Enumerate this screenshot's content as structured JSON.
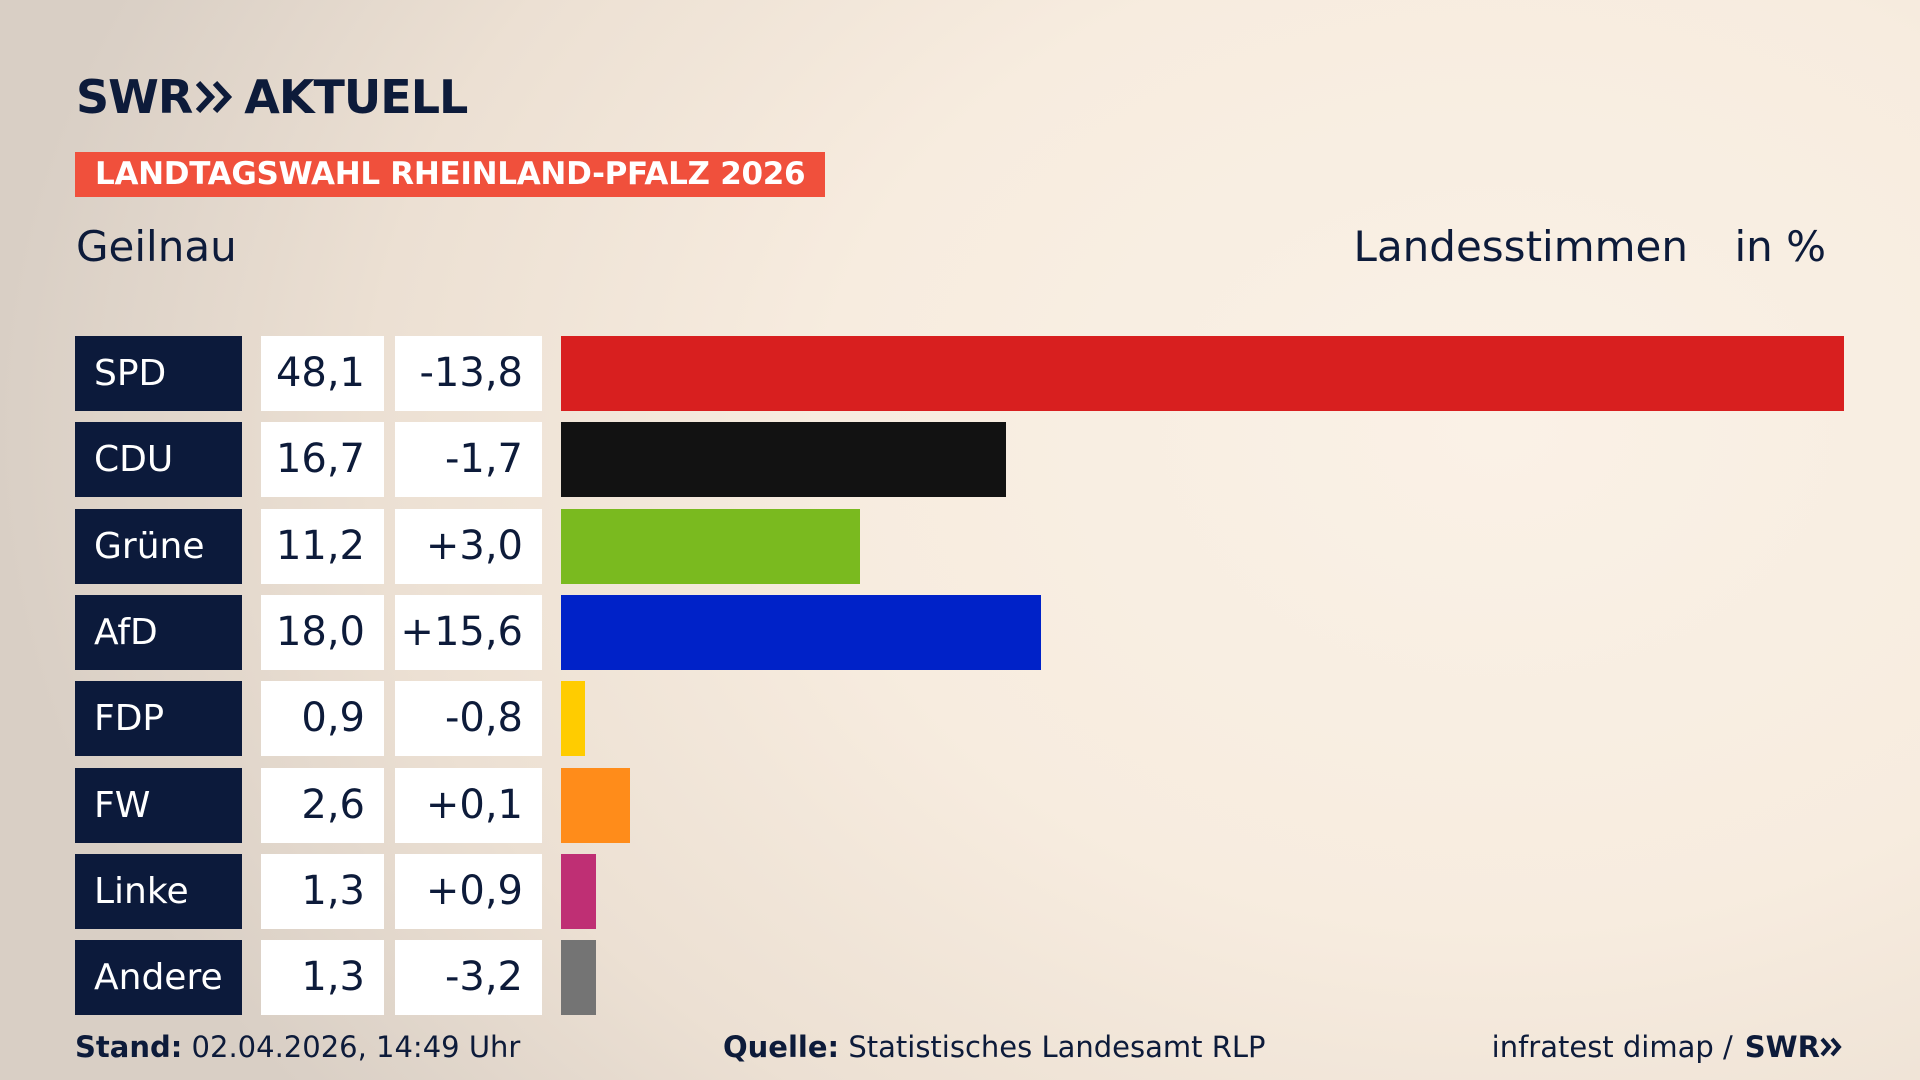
{
  "header": {
    "logo_brand": "SWR",
    "logo_name": "AKTUELL",
    "election_tag": "LANDTAGSWAHL RHEINLAND-PFALZ 2026",
    "location": "Geilnau",
    "vote_type": "Landesstimmen",
    "unit": "in %"
  },
  "chart_data": {
    "type": "bar",
    "orientation": "horizontal",
    "categories": [
      "SPD",
      "CDU",
      "Grüne",
      "AfD",
      "FDP",
      "FW",
      "Linke",
      "Andere"
    ],
    "values": [
      48.1,
      16.7,
      11.2,
      18.0,
      0.9,
      2.6,
      1.3,
      1.3
    ],
    "value_labels": [
      "48,1",
      "16,7",
      "11,2",
      "18,0",
      "0,9",
      "2,6",
      "1,3",
      "1,3"
    ],
    "change_labels": [
      "-13,8",
      "-1,7",
      "+3,0",
      "+15,6",
      "-0,8",
      "+0,1",
      "+0,9",
      "-3,2"
    ],
    "changes": [
      -13.8,
      -1.7,
      3.0,
      15.6,
      -0.8,
      0.1,
      0.9,
      -3.2
    ],
    "colors": [
      "#d81f1f",
      "#121212",
      "#7aba1f",
      "#0022c8",
      "#ffcc00",
      "#ff8c1a",
      "#bf2f74",
      "#747474"
    ],
    "xlim": [
      0,
      48.1
    ],
    "grid": false,
    "legend": "none"
  },
  "footer": {
    "stand_label": "Stand:",
    "stand_value": "02.04.2026, 14:49 Uhr",
    "source_label": "Quelle:",
    "source_value": "Statistisches Landesamt RLP",
    "credit": "infratest dimap /",
    "credit_brand": "SWR"
  }
}
